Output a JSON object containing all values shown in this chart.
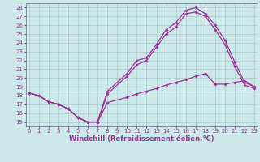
{
  "xlabel": "Windchill (Refroidissement éolien,°C)",
  "background_color": "#cde8e8",
  "grid_color": "#aacccc",
  "line_color": "#993399",
  "x_ticks": [
    0,
    1,
    2,
    3,
    4,
    5,
    6,
    7,
    8,
    9,
    10,
    11,
    12,
    13,
    14,
    15,
    16,
    17,
    18,
    19,
    20,
    21,
    22,
    23
  ],
  "y_ticks": [
    15,
    16,
    17,
    18,
    19,
    20,
    21,
    22,
    23,
    24,
    25,
    26,
    27,
    28
  ],
  "xlim": [
    -0.3,
    23.3
  ],
  "ylim": [
    14.5,
    28.5
  ],
  "line1_x": [
    0,
    1,
    2,
    3,
    4,
    5,
    6,
    7,
    8,
    10,
    11,
    12,
    13,
    14,
    15,
    16,
    17,
    18,
    19,
    20,
    21,
    22,
    23
  ],
  "line1_y": [
    18.3,
    18.0,
    17.3,
    17.0,
    16.5,
    15.5,
    15.0,
    15.0,
    18.5,
    20.5,
    22.0,
    22.3,
    23.8,
    25.5,
    26.3,
    27.7,
    28.0,
    27.3,
    26.0,
    24.3,
    21.8,
    19.5,
    19.0
  ],
  "line2_x": [
    0,
    1,
    2,
    3,
    4,
    5,
    6,
    7,
    8,
    10,
    11,
    12,
    13,
    14,
    15,
    16,
    17,
    18,
    19,
    20,
    21,
    22,
    23
  ],
  "line2_y": [
    18.3,
    18.0,
    17.3,
    17.0,
    16.5,
    15.5,
    15.0,
    15.0,
    18.2,
    20.2,
    21.5,
    22.0,
    23.5,
    25.0,
    25.8,
    27.3,
    27.5,
    27.0,
    25.5,
    23.8,
    21.3,
    19.2,
    18.8
  ],
  "line3_x": [
    0,
    1,
    2,
    3,
    4,
    5,
    6,
    7,
    8,
    10,
    11,
    12,
    13,
    14,
    15,
    16,
    17,
    18,
    19,
    20,
    21,
    22,
    23
  ],
  "line3_y": [
    18.3,
    18.0,
    17.3,
    17.0,
    16.5,
    15.5,
    15.0,
    15.0,
    17.2,
    17.8,
    18.2,
    18.5,
    18.8,
    19.2,
    19.5,
    19.8,
    20.2,
    20.5,
    19.3,
    19.3,
    19.5,
    19.7,
    19.0
  ],
  "marker": "D",
  "markersize": 2.0,
  "linewidth": 0.9,
  "tick_fontsize": 5.0,
  "label_fontsize": 6.0
}
